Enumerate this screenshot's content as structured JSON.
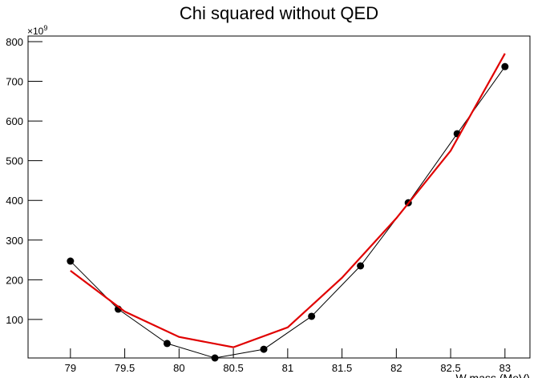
{
  "chart_data": {
    "type": "line",
    "title": "Chi squared without QED",
    "x_label": "W mass (MeV)",
    "y_multiplier": "×10",
    "y_multiplier_exponent": "9",
    "xlim": [
      78.61,
      83.23
    ],
    "ylim": [
      3,
      814
    ],
    "xticks": [
      79,
      79.5,
      80,
      80.5,
      81,
      81.5,
      82,
      82.5,
      83
    ],
    "yticks": [
      100,
      200,
      300,
      400,
      500,
      600,
      700,
      800
    ],
    "series": [
      {
        "color": "#000000",
        "markers": true,
        "x": [
          79,
          79.44,
          79.89,
          80.33,
          80.78,
          81.22,
          81.67,
          82.11,
          82.56,
          83
        ],
        "values": [
          247,
          126,
          39.5,
          3,
          25,
          108,
          235,
          394,
          568,
          737
        ]
      },
      {
        "color": "#e00000",
        "markers": false,
        "x": [
          79,
          79.5,
          80,
          80.5,
          81,
          81.5,
          82,
          82.5,
          83
        ],
        "values": [
          223,
          120,
          56,
          30,
          80,
          205,
          355,
          525,
          770
        ]
      }
    ]
  }
}
